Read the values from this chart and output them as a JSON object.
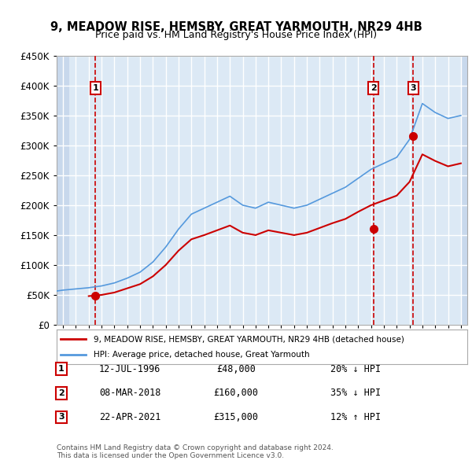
{
  "title": "9, MEADOW RISE, HEMSBY, GREAT YARMOUTH, NR29 4HB",
  "subtitle": "Price paid vs. HM Land Registry's House Price Index (HPI)",
  "background_color": "#dce9f5",
  "plot_bg_color": "#dce9f5",
  "hatch_color": "#c0d0e8",
  "grid_color": "#ffffff",
  "ylabel_values": [
    "£0",
    "£50K",
    "£100K",
    "£150K",
    "£200K",
    "£250K",
    "£300K",
    "£350K",
    "£400K",
    "£450K"
  ],
  "ylim": [
    0,
    450000
  ],
  "xlim_start": 1993.5,
  "xlim_end": 2025.5,
  "sale_dates": [
    1996.53,
    2018.18,
    2021.3
  ],
  "sale_prices": [
    48000,
    160000,
    315000
  ],
  "sale_labels": [
    "1",
    "2",
    "3"
  ],
  "red_line_color": "#cc0000",
  "blue_line_color": "#5599dd",
  "transaction_table": [
    {
      "label": "1",
      "date": "12-JUL-1996",
      "price": "£48,000",
      "hpi": "20% ↓ HPI"
    },
    {
      "label": "2",
      "date": "08-MAR-2018",
      "price": "£160,000",
      "hpi": "35% ↓ HPI"
    },
    {
      "label": "3",
      "date": "22-APR-2021",
      "price": "£315,000",
      "hpi": "12% ↑ HPI"
    }
  ],
  "legend_line1": "9, MEADOW RISE, HEMSBY, GREAT YARMOUTH, NR29 4HB (detached house)",
  "legend_line2": "HPI: Average price, detached house, Great Yarmouth",
  "footer": "Contains HM Land Registry data © Crown copyright and database right 2024.\nThis data is licensed under the Open Government Licence v3.0.",
  "hpi_years": [
    1993,
    1994,
    1995,
    1996,
    1997,
    1998,
    1999,
    2000,
    2001,
    2002,
    2003,
    2004,
    2005,
    2006,
    2007,
    2008,
    2009,
    2010,
    2011,
    2012,
    2013,
    2014,
    2015,
    2016,
    2017,
    2018,
    2019,
    2020,
    2021,
    2022,
    2023,
    2024,
    2025
  ],
  "hpi_values": [
    55000,
    58000,
    60000,
    62000,
    65000,
    70000,
    78000,
    88000,
    105000,
    130000,
    160000,
    185000,
    195000,
    205000,
    215000,
    200000,
    195000,
    205000,
    200000,
    195000,
    200000,
    210000,
    220000,
    230000,
    245000,
    260000,
    270000,
    280000,
    310000,
    370000,
    355000,
    345000,
    350000
  ],
  "property_hpi_years": [
    1996,
    1997,
    1998,
    1999,
    2000,
    2001,
    2002,
    2003,
    2004,
    2005,
    2006,
    2007,
    2008,
    2009,
    2010,
    2011,
    2012,
    2013,
    2014,
    2015,
    2016,
    2017,
    2018,
    2019,
    2020,
    2021,
    2022,
    2023,
    2024,
    2025
  ],
  "property_hpi_values": [
    48000,
    50000,
    54000,
    61000,
    68000,
    81000,
    100000,
    124000,
    143000,
    150000,
    158000,
    166000,
    154000,
    150000,
    158000,
    154000,
    150000,
    154000,
    162000,
    170000,
    177000,
    189000,
    200000,
    208000,
    216000,
    239000,
    285000,
    274000,
    265000,
    270000
  ]
}
